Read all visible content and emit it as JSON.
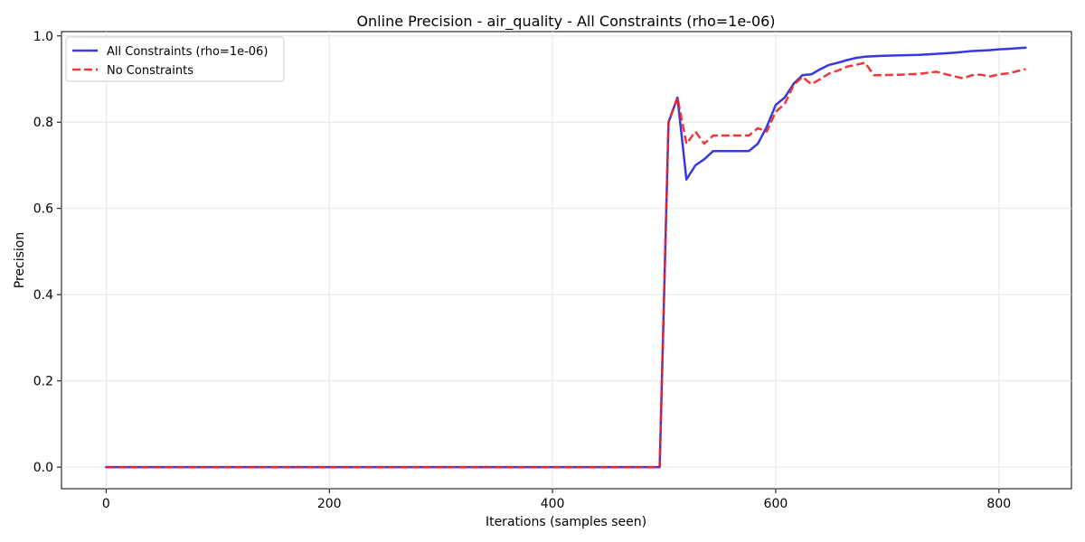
{
  "chart_data": {
    "type": "line",
    "title": "Online Precision - air_quality - All Constraints (rho=1e-06)",
    "xlabel": "Iterations (samples seen)",
    "ylabel": "Precision",
    "xlim": [
      -40,
      865
    ],
    "ylim": [
      -0.05,
      1.01
    ],
    "xticks": [
      0,
      200,
      400,
      600,
      800
    ],
    "yticks": [
      0.0,
      0.2,
      0.4,
      0.6,
      0.8,
      1.0
    ],
    "xtick_labels": [
      "0",
      "200",
      "400",
      "600",
      "800"
    ],
    "ytick_labels": [
      "0.0",
      "0.2",
      "0.4",
      "0.6",
      "0.8",
      "1.0"
    ],
    "grid": true,
    "legend_position": "upper-left",
    "series": [
      {
        "name": "All Constraints (rho=1e-06)",
        "color": "#2222dd",
        "style": "solid",
        "x": [
          0,
          496,
          504,
          512,
          520,
          528,
          536,
          544,
          552,
          560,
          568,
          576,
          584,
          592,
          600,
          608,
          616,
          624,
          632,
          640,
          648,
          656,
          664,
          672,
          680,
          696,
          712,
          728,
          736,
          760,
          776,
          792,
          800,
          808,
          824
        ],
        "y": [
          0.0,
          0.0,
          0.8,
          0.857,
          0.667,
          0.7,
          0.714,
          0.733,
          0.733,
          0.733,
          0.733,
          0.733,
          0.75,
          0.789,
          0.84,
          0.857,
          0.889,
          0.909,
          0.911,
          0.923,
          0.933,
          0.938,
          0.944,
          0.949,
          0.952,
          0.954,
          0.955,
          0.956,
          0.957,
          0.961,
          0.965,
          0.967,
          0.969,
          0.97,
          0.973
        ]
      },
      {
        "name": "No Constraints",
        "color": "#ee2222",
        "style": "dashed",
        "x": [
          0,
          496,
          504,
          512,
          520,
          528,
          536,
          544,
          552,
          560,
          568,
          576,
          584,
          592,
          600,
          608,
          616,
          624,
          632,
          640,
          648,
          656,
          664,
          672,
          680,
          688,
          696,
          712,
          728,
          744,
          760,
          768,
          776,
          784,
          792,
          800,
          808,
          816,
          824
        ],
        "y": [
          0.0,
          0.0,
          0.8,
          0.857,
          0.75,
          0.778,
          0.75,
          0.769,
          0.769,
          0.769,
          0.769,
          0.769,
          0.786,
          0.778,
          0.824,
          0.842,
          0.886,
          0.905,
          0.888,
          0.9,
          0.913,
          0.92,
          0.929,
          0.933,
          0.938,
          0.909,
          0.909,
          0.91,
          0.912,
          0.917,
          0.906,
          0.902,
          0.909,
          0.91,
          0.906,
          0.911,
          0.913,
          0.918,
          0.923
        ]
      }
    ]
  }
}
